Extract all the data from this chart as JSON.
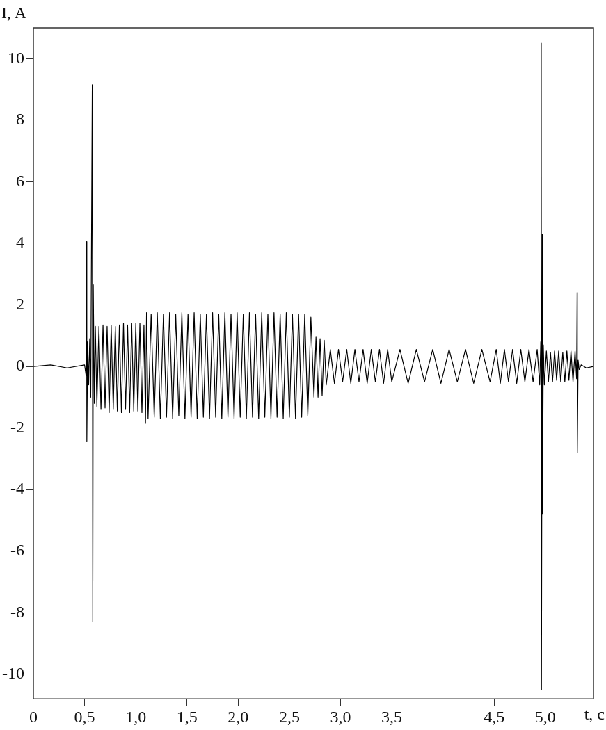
{
  "chart_data": {
    "type": "line",
    "xlabel": "t, c",
    "ylabel": "I, A",
    "color": "#000000",
    "xlim": [
      0,
      5.47
    ],
    "ylim": [
      -10.8,
      11
    ],
    "xticks": [
      0,
      {
        "value": 0.5,
        "label": "0,5"
      },
      {
        "value": 1.0,
        "label": "1,0"
      },
      {
        "value": 1.5,
        "label": "1,5"
      },
      {
        "value": 2.0,
        "label": "2,0"
      },
      {
        "value": 2.5,
        "label": "2,5"
      },
      {
        "value": 3.0,
        "label": "3,0"
      },
      {
        "value": 3.5,
        "label": "3,5"
      },
      {
        "value": 4.5,
        "label": "4,5"
      },
      {
        "value": 5.0,
        "label": "5,0"
      }
    ],
    "yticks": [
      -10,
      -8,
      -6,
      -4,
      -2,
      0,
      2,
      4,
      6,
      8,
      10
    ],
    "x": [
      0,
      0.17,
      0.33,
      0.5,
      0.515,
      0.52,
      0.522,
      0.53,
      0.54,
      0.55,
      0.56,
      0.575,
      0.58,
      0.585,
      0.595,
      0.605,
      0.62,
      0.64,
      0.66,
      0.68,
      0.7,
      0.72,
      0.74,
      0.76,
      0.78,
      0.8,
      0.82,
      0.84,
      0.86,
      0.88,
      0.9,
      0.92,
      0.94,
      0.96,
      0.98,
      1.0,
      1.02,
      1.04,
      1.06,
      1.08,
      1.095,
      1.105,
      1.12,
      1.15,
      1.18,
      1.21,
      1.24,
      1.27,
      1.3,
      1.33,
      1.36,
      1.39,
      1.42,
      1.45,
      1.48,
      1.51,
      1.54,
      1.57,
      1.6,
      1.63,
      1.66,
      1.69,
      1.72,
      1.75,
      1.78,
      1.81,
      1.84,
      1.87,
      1.9,
      1.93,
      1.96,
      1.99,
      2.02,
      2.05,
      2.08,
      2.11,
      2.14,
      2.17,
      2.2,
      2.23,
      2.26,
      2.29,
      2.32,
      2.35,
      2.38,
      2.41,
      2.44,
      2.47,
      2.5,
      2.53,
      2.56,
      2.59,
      2.62,
      2.65,
      2.68,
      2.71,
      2.74,
      2.76,
      2.78,
      2.8,
      2.82,
      2.84,
      2.86,
      2.9,
      2.94,
      2.98,
      3.02,
      3.06,
      3.1,
      3.14,
      3.18,
      3.22,
      3.26,
      3.3,
      3.34,
      3.38,
      3.42,
      3.46,
      3.5,
      3.58,
      3.66,
      3.74,
      3.82,
      3.9,
      3.98,
      4.06,
      4.14,
      4.22,
      4.3,
      4.38,
      4.46,
      4.52,
      4.56,
      4.6,
      4.64,
      4.68,
      4.72,
      4.76,
      4.8,
      4.84,
      4.88,
      4.92,
      4.945,
      4.955,
      4.96,
      4.962,
      4.97,
      4.972,
      4.98,
      4.99,
      5.01,
      5.03,
      5.05,
      5.07,
      5.09,
      5.11,
      5.13,
      5.15,
      5.17,
      5.19,
      5.21,
      5.23,
      5.25,
      5.27,
      5.29,
      5.305,
      5.31,
      5.312,
      5.32,
      5.33,
      5.35,
      5.4,
      5.47
    ],
    "values": [
      0,
      0.05,
      -0.05,
      0.05,
      -0.3,
      4.05,
      -2.45,
      0.8,
      -0.6,
      0.9,
      -1.0,
      9.15,
      -8.3,
      2.65,
      -1.2,
      1.3,
      -1.3,
      1.3,
      -1.4,
      1.35,
      -1.35,
      1.3,
      -1.5,
      1.35,
      -1.4,
      1.3,
      -1.45,
      1.35,
      -1.5,
      1.4,
      -1.4,
      1.35,
      -1.5,
      1.4,
      -1.45,
      1.4,
      -1.45,
      1.4,
      -1.5,
      1.35,
      -1.85,
      1.75,
      -1.7,
      1.7,
      -1.65,
      1.75,
      -1.7,
      1.7,
      -1.65,
      1.75,
      -1.7,
      1.7,
      -1.6,
      1.75,
      -1.7,
      1.7,
      -1.65,
      1.75,
      -1.7,
      1.7,
      -1.65,
      1.7,
      -1.7,
      1.75,
      -1.65,
      1.7,
      -1.7,
      1.75,
      -1.65,
      1.7,
      -1.7,
      1.75,
      -1.65,
      1.7,
      -1.7,
      1.75,
      -1.65,
      1.7,
      -1.7,
      1.75,
      -1.65,
      1.7,
      -1.7,
      1.75,
      -1.65,
      1.7,
      -1.7,
      1.75,
      -1.65,
      1.7,
      -1.7,
      1.7,
      -1.65,
      1.7,
      -1.6,
      1.6,
      -1.0,
      0.95,
      -1.0,
      0.9,
      -0.95,
      0.85,
      -0.6,
      0.55,
      -0.55,
      0.55,
      -0.5,
      0.55,
      -0.55,
      0.55,
      -0.5,
      0.55,
      -0.55,
      0.55,
      -0.5,
      0.55,
      -0.55,
      0.55,
      -0.5,
      0.55,
      -0.55,
      0.55,
      -0.5,
      0.55,
      -0.55,
      0.55,
      -0.5,
      0.55,
      -0.55,
      0.55,
      -0.5,
      0.55,
      -0.55,
      0.55,
      -0.5,
      0.55,
      -0.55,
      0.55,
      -0.5,
      0.55,
      -0.5,
      0.55,
      -0.6,
      0.8,
      10.5,
      -10.5,
      4.3,
      -4.8,
      0.7,
      -0.6,
      0.5,
      -0.5,
      0.45,
      -0.5,
      0.5,
      -0.45,
      0.5,
      -0.5,
      0.45,
      -0.5,
      0.5,
      -0.45,
      0.5,
      -0.5,
      0.5,
      -0.4,
      2.4,
      -2.8,
      0.2,
      -0.1,
      0.05,
      -0.05,
      0
    ]
  }
}
